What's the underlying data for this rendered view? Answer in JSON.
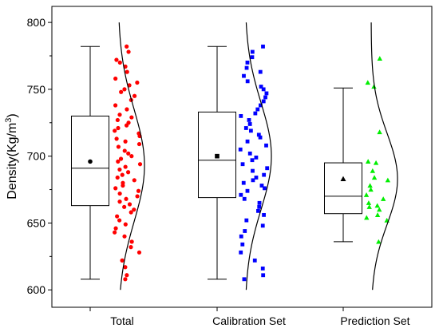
{
  "chart_data": {
    "type": "box",
    "ylabel": "Density(Kg/m³)",
    "ylabel_main": "Density(Kg/m",
    "ylabel_sup": "3",
    "ylabel_tail": ")",
    "ylim": [
      587,
      812
    ],
    "yticks": [
      600,
      650,
      700,
      750,
      800
    ],
    "categories": [
      "Total",
      "Calibration Set",
      "Prediction Set"
    ],
    "groups": [
      {
        "name": "Total",
        "color": "#ff0000",
        "marker": "circle",
        "box": {
          "whisker_low": 608,
          "q1": 663,
          "median": 691,
          "q3": 730,
          "whisker_high": 782,
          "mean": 696
        },
        "points": [
          782,
          778,
          772,
          770,
          767,
          763,
          758,
          755,
          753,
          750,
          748,
          745,
          742,
          738,
          735,
          731,
          729,
          727,
          725,
          723,
          721,
          719,
          717,
          715,
          713,
          711,
          709,
          707,
          704,
          702,
          700,
          698,
          696,
          694,
          692,
          690,
          688,
          686,
          684,
          682,
          680,
          678,
          676,
          674,
          672,
          670,
          668,
          666,
          664,
          662,
          660,
          658,
          655,
          652,
          649,
          646,
          643,
          640,
          636,
          632,
          628,
          622,
          617,
          611,
          608
        ],
        "curve": {
          "mean": 693,
          "sd": 42
        }
      },
      {
        "name": "Calibration Set",
        "color": "#0000ff",
        "marker": "square",
        "box": {
          "whisker_low": 608,
          "q1": 669,
          "median": 697,
          "q3": 733,
          "whisker_high": 782,
          "mean": 700
        },
        "points": [
          782,
          778,
          774,
          770,
          766,
          763,
          760,
          756,
          752,
          750,
          747,
          744,
          741,
          738,
          735,
          732,
          730,
          727,
          724,
          721,
          719,
          716,
          714,
          711,
          708,
          705,
          702,
          699,
          697,
          694,
          691,
          689,
          686,
          684,
          682,
          680,
          678,
          676,
          674,
          671,
          668,
          665,
          662,
          659,
          656,
          652,
          648,
          644,
          640,
          634,
          628,
          622,
          616,
          611,
          608
        ],
        "curve": {
          "mean": 700,
          "sd": 40
        }
      },
      {
        "name": "Prediction Set",
        "color": "#00ee00",
        "marker": "triangle",
        "box": {
          "whisker_low": 636,
          "q1": 657,
          "median": 670,
          "q3": 695,
          "whisker_high": 751,
          "mean": 683
        },
        "points": [
          773,
          755,
          752,
          718,
          696,
          695,
          689,
          684,
          682,
          678,
          675,
          671,
          668,
          665,
          663,
          662,
          660,
          656,
          654,
          652,
          636
        ],
        "curve": {
          "mean": 683,
          "sd": 34
        }
      }
    ],
    "axis_color": "#000000",
    "grid": false,
    "legend": "none"
  }
}
